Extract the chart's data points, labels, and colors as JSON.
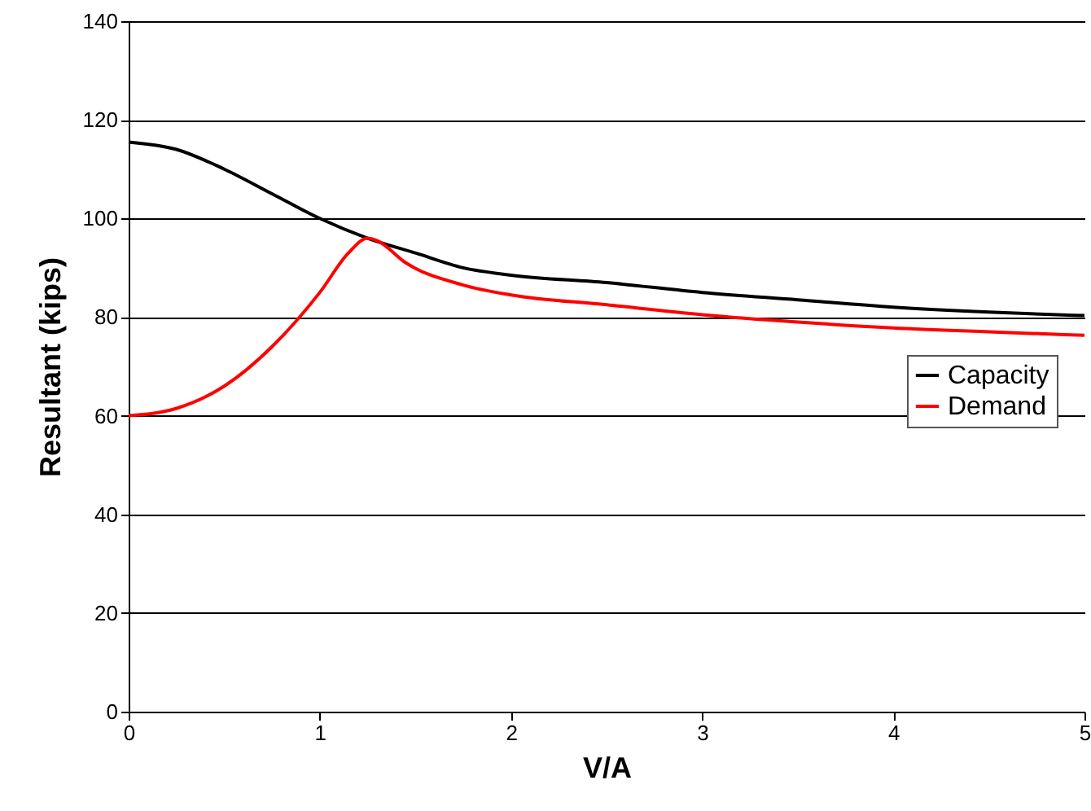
{
  "chart_data": {
    "type": "line",
    "xlabel": "V/A",
    "ylabel": "Resultant (kips)",
    "xlim": [
      0,
      5
    ],
    "xticks": [
      0,
      1,
      2,
      3,
      4,
      5
    ],
    "ylim": [
      0,
      140
    ],
    "yticks": [
      0,
      20,
      40,
      60,
      80,
      100,
      120,
      140
    ],
    "grid": "y",
    "legend": "right",
    "marker": "none",
    "line_style": "solid",
    "series": [
      {
        "name": "Capacity",
        "color": "#000000",
        "x": [
          0,
          0.25,
          0.5,
          0.75,
          1,
          1.25,
          1.5,
          1.75,
          2,
          2.5,
          3,
          3.5,
          4,
          4.5,
          5
        ],
        "values": [
          115.5,
          114,
          110,
          105,
          100,
          96,
          93,
          90,
          88.5,
          87,
          85,
          83.5,
          82,
          81,
          80.3
        ]
      },
      {
        "name": "Demand",
        "color": "#ff0000",
        "x": [
          0,
          0.25,
          0.5,
          0.75,
          1,
          1.15,
          1.25,
          1.3,
          1.45,
          1.75,
          2,
          2.5,
          3,
          3.5,
          4,
          4.5,
          5
        ],
        "values": [
          60,
          61.5,
          66,
          74,
          85,
          93,
          96,
          95.5,
          91,
          86.5,
          84.5,
          82.5,
          80.5,
          79,
          77.8,
          77,
          76.3
        ]
      }
    ]
  }
}
